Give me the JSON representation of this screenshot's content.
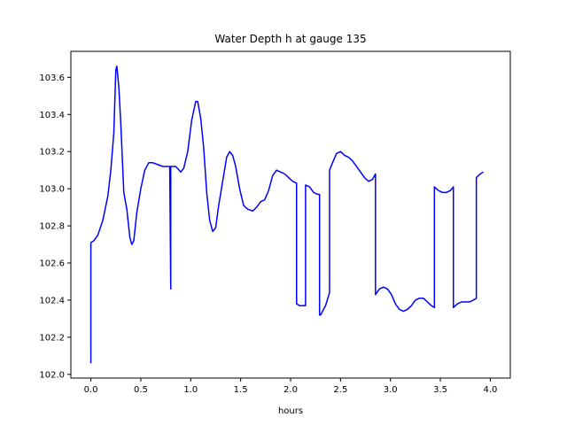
{
  "chart_data": {
    "type": "line",
    "title": "Water Depth h at gauge 135",
    "xlabel": "hours",
    "ylabel": "",
    "xlim": [
      -0.2,
      4.2
    ],
    "ylim": [
      101.98,
      103.74
    ],
    "x_ticks": [
      0.0,
      0.5,
      1.0,
      1.5,
      2.0,
      2.5,
      3.0,
      3.5,
      4.0
    ],
    "x_tick_labels": [
      "0.0",
      "0.5",
      "1.0",
      "1.5",
      "2.0",
      "2.5",
      "3.0",
      "3.5",
      "4.0"
    ],
    "y_ticks": [
      102.0,
      102.2,
      102.4,
      102.6,
      102.8,
      103.0,
      103.2,
      103.4,
      103.6
    ],
    "y_tick_labels": [
      "102.0",
      "102.2",
      "102.4",
      "102.6",
      "102.8",
      "103.0",
      "103.2",
      "103.4",
      "103.6"
    ],
    "grid": false,
    "legend": "none",
    "series": [
      {
        "color": "#0000ff",
        "points": [
          [
            0.0,
            102.06
          ],
          [
            0.0,
            102.71
          ],
          [
            0.03,
            102.72
          ],
          [
            0.07,
            102.75
          ],
          [
            0.12,
            102.83
          ],
          [
            0.17,
            102.96
          ],
          [
            0.2,
            103.1
          ],
          [
            0.23,
            103.3
          ],
          [
            0.25,
            103.64
          ],
          [
            0.26,
            103.66
          ],
          [
            0.28,
            103.55
          ],
          [
            0.3,
            103.35
          ],
          [
            0.33,
            102.98
          ],
          [
            0.36,
            102.89
          ],
          [
            0.39,
            102.74
          ],
          [
            0.41,
            102.7
          ],
          [
            0.43,
            102.72
          ],
          [
            0.46,
            102.87
          ],
          [
            0.5,
            103.0
          ],
          [
            0.54,
            103.1
          ],
          [
            0.58,
            103.14
          ],
          [
            0.62,
            103.14
          ],
          [
            0.67,
            103.13
          ],
          [
            0.72,
            103.12
          ],
          [
            0.78,
            103.12
          ],
          [
            0.79,
            103.12
          ],
          [
            0.8,
            102.46
          ],
          [
            0.8,
            103.12
          ],
          [
            0.85,
            103.12
          ],
          [
            0.9,
            103.09
          ],
          [
            0.93,
            103.11
          ],
          [
            0.97,
            103.2
          ],
          [
            1.01,
            103.37
          ],
          [
            1.05,
            103.47
          ],
          [
            1.07,
            103.47
          ],
          [
            1.1,
            103.38
          ],
          [
            1.13,
            103.22
          ],
          [
            1.16,
            102.98
          ],
          [
            1.19,
            102.83
          ],
          [
            1.22,
            102.77
          ],
          [
            1.25,
            102.79
          ],
          [
            1.28,
            102.91
          ],
          [
            1.32,
            103.04
          ],
          [
            1.36,
            103.17
          ],
          [
            1.39,
            103.2
          ],
          [
            1.42,
            103.18
          ],
          [
            1.45,
            103.12
          ],
          [
            1.49,
            103.0
          ],
          [
            1.53,
            102.91
          ],
          [
            1.57,
            102.89
          ],
          [
            1.62,
            102.88
          ],
          [
            1.66,
            102.9
          ],
          [
            1.7,
            102.93
          ],
          [
            1.74,
            102.94
          ],
          [
            1.78,
            102.99
          ],
          [
            1.82,
            103.07
          ],
          [
            1.86,
            103.1
          ],
          [
            1.9,
            103.09
          ],
          [
            1.94,
            103.08
          ],
          [
            1.98,
            103.06
          ],
          [
            2.02,
            103.04
          ],
          [
            2.06,
            103.03
          ],
          [
            2.06,
            102.38
          ],
          [
            2.09,
            102.37
          ],
          [
            2.14,
            102.37
          ],
          [
            2.15,
            102.37
          ],
          [
            2.15,
            103.02
          ],
          [
            2.19,
            103.01
          ],
          [
            2.23,
            102.98
          ],
          [
            2.27,
            102.97
          ],
          [
            2.29,
            102.97
          ],
          [
            2.29,
            102.32
          ],
          [
            2.3,
            102.32
          ],
          [
            2.35,
            102.37
          ],
          [
            2.39,
            102.44
          ],
          [
            2.39,
            103.1
          ],
          [
            2.42,
            103.14
          ],
          [
            2.46,
            103.19
          ],
          [
            2.5,
            103.2
          ],
          [
            2.54,
            103.18
          ],
          [
            2.58,
            103.17
          ],
          [
            2.62,
            103.15
          ],
          [
            2.66,
            103.12
          ],
          [
            2.7,
            103.09
          ],
          [
            2.74,
            103.06
          ],
          [
            2.78,
            103.04
          ],
          [
            2.82,
            103.05
          ],
          [
            2.85,
            103.08
          ],
          [
            2.85,
            102.43
          ],
          [
            2.89,
            102.46
          ],
          [
            2.93,
            102.47
          ],
          [
            2.97,
            102.46
          ],
          [
            3.01,
            102.43
          ],
          [
            3.05,
            102.38
          ],
          [
            3.09,
            102.35
          ],
          [
            3.13,
            102.34
          ],
          [
            3.17,
            102.35
          ],
          [
            3.21,
            102.37
          ],
          [
            3.25,
            102.4
          ],
          [
            3.29,
            102.41
          ],
          [
            3.33,
            102.41
          ],
          [
            3.37,
            102.39
          ],
          [
            3.41,
            102.37
          ],
          [
            3.44,
            102.36
          ],
          [
            3.44,
            103.01
          ],
          [
            3.48,
            102.99
          ],
          [
            3.52,
            102.98
          ],
          [
            3.56,
            102.98
          ],
          [
            3.6,
            102.99
          ],
          [
            3.63,
            103.01
          ],
          [
            3.63,
            102.36
          ],
          [
            3.67,
            102.38
          ],
          [
            3.71,
            102.39
          ],
          [
            3.75,
            102.39
          ],
          [
            3.79,
            102.39
          ],
          [
            3.83,
            102.4
          ],
          [
            3.86,
            102.41
          ],
          [
            3.86,
            103.06
          ],
          [
            3.9,
            103.08
          ],
          [
            3.93,
            103.09
          ]
        ]
      }
    ]
  }
}
